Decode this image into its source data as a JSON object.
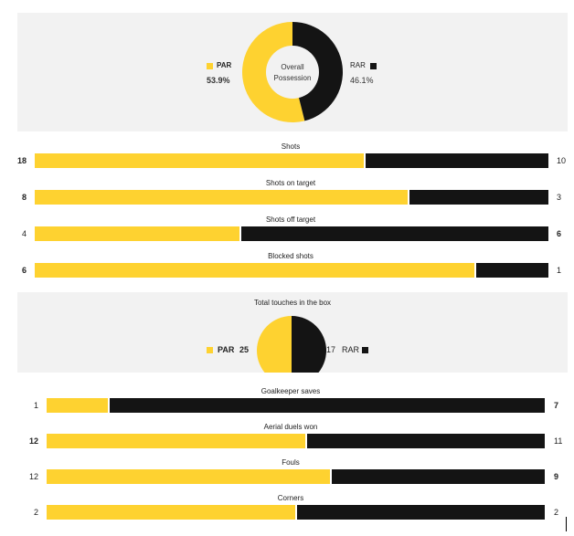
{
  "colors": {
    "home": "#fed230",
    "away": "#141414",
    "panel": "#f2f2f2"
  },
  "possession": {
    "center_label_line1": "Overall",
    "center_label_line2": "Possession",
    "home": {
      "team": "PAR",
      "value": "53.9%",
      "fraction": 0.539
    },
    "away": {
      "team": "RAR",
      "value": "46.1%",
      "fraction": 0.461
    }
  },
  "stats_group_1": [
    {
      "title": "Shots",
      "home": "18",
      "away": "10",
      "home_num": 18,
      "away_num": 10,
      "bold": "home"
    },
    {
      "title": "Shots on target",
      "home": "8",
      "away": "3",
      "home_num": 8,
      "away_num": 3,
      "bold": "home"
    },
    {
      "title": "Shots off target",
      "home": "4",
      "away": "6",
      "home_num": 4,
      "away_num": 6,
      "bold": "away"
    },
    {
      "title": "Blocked shots",
      "home": "6",
      "away": "1",
      "home_num": 6,
      "away_num": 1,
      "bold": "home"
    }
  ],
  "touches": {
    "title": "Total touches in the box",
    "home": {
      "team": "PAR",
      "value": "25",
      "num": 25
    },
    "away": {
      "team": "RAR",
      "value": "17",
      "num": 17
    }
  },
  "stats_group_2": [
    {
      "title": "Goalkeeper saves",
      "home": "1",
      "away": "7",
      "home_num": 1,
      "away_num": 7,
      "bold": "away"
    },
    {
      "title": "Aerial duels won",
      "home": "12",
      "away": "11",
      "home_num": 12,
      "away_num": 11,
      "bold": "home"
    },
    {
      "title": "Fouls",
      "home": "12",
      "away": "9",
      "home_num": 12,
      "away_num": 9,
      "bold": "away"
    },
    {
      "title": "Corners",
      "home": "2",
      "away": "2",
      "home_num": 2,
      "away_num": 2,
      "bold": "none"
    }
  ]
}
